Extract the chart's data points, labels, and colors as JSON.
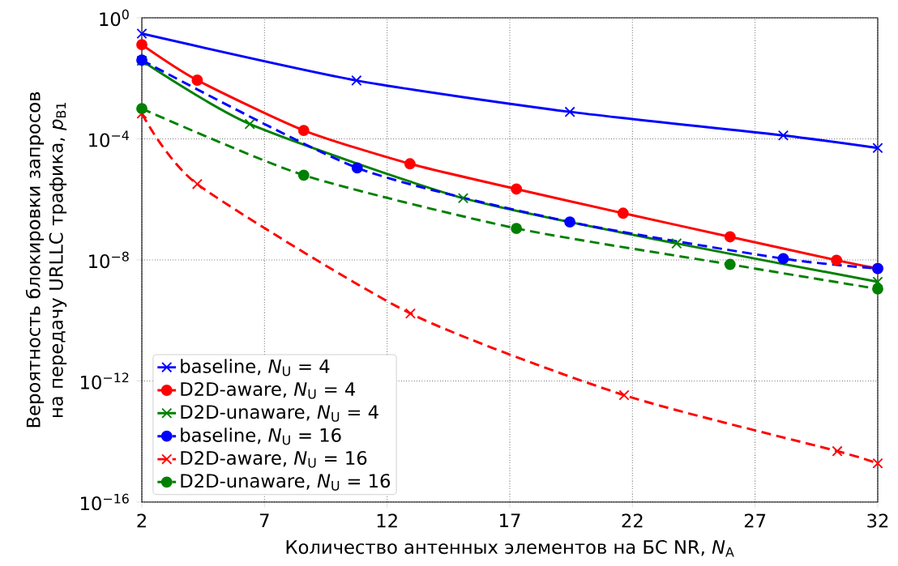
{
  "chart_data": {
    "type": "line",
    "xlabel": "Количество антенных элементов на БС NR, *N*$_{A}$",
    "ylabel": "Вероятность блокировки запросов на передачу URLLC трафика, *p*$_{B1}$",
    "log": "y",
    "grid": true,
    "legend": "bottom left",
    "xlim": [
      2,
      32
    ],
    "xticks": [
      2,
      7,
      12,
      17,
      22,
      27,
      32
    ],
    "ylim": [
      1e-16,
      1
    ],
    "yticks": [
      {
        "value": 1e-16,
        "label": "10$^{−16}$"
      },
      {
        "value": 1e-12,
        "label": "10$^{−12}$"
      },
      {
        "value": 1e-08,
        "label": "10$^{−8}$"
      },
      {
        "value": 0.0001,
        "label": "10$^{−4}$"
      },
      {
        "value": 1,
        "label": "10$^{0}$"
      }
    ],
    "series": [
      {
        "name": "baseline, *N*$_{U}$ = 4",
        "color": "#0000ff",
        "marker": "cross",
        "line_style": "solid",
        "x": [
          2,
          10.75,
          19.45,
          28.15,
          32
        ],
        "values": [
          0.3,
          0.0085,
          0.00078,
          0.00013,
          5e-05
        ]
      },
      {
        "name": "D2D-aware, *N*$_{U}$ = 4",
        "color": "#ff0000",
        "marker": "circle",
        "line_style": "solid",
        "x": [
          2,
          4.26,
          8.6,
          12.93,
          17.27,
          21.62,
          25.98,
          30.32,
          32
        ],
        "values": [
          0.13,
          0.0087,
          0.00019,
          1.5e-05,
          2.2e-06,
          3.5e-07,
          5.8e-08,
          9.8e-09,
          5.2e-09
        ]
      },
      {
        "name": "D2D-unaware, *N*$_{U}$ = 4",
        "color": "#008000",
        "marker": "cross",
        "line_style": "solid",
        "x": [
          2,
          6.4,
          15.1,
          23.8,
          32
        ],
        "values": [
          0.038,
          0.00031,
          1.1e-06,
          3.5e-08,
          1.9e-09
        ]
      },
      {
        "name": "baseline, *N*$_{U}$ = 16",
        "color": "#0000ff",
        "marker": "circle",
        "line_style": "dashed",
        "x": [
          2,
          10.78,
          19.45,
          28.15,
          32
        ],
        "values": [
          0.04,
          1.1e-05,
          1.8e-07,
          1.1e-08,
          5.2e-09
        ]
      },
      {
        "name": "D2D-aware, *N*$_{U}$ = 16",
        "color": "#ff0000",
        "marker": "cross",
        "line_style": "dashed",
        "x": [
          2,
          4.26,
          12.95,
          21.66,
          30.35,
          32
        ],
        "values": [
          0.00069,
          3.2e-06,
          1.7e-10,
          3.4e-13,
          4.8e-15,
          1.9e-15
        ]
      },
      {
        "name": "D2D-unaware, *N*$_{U}$ = 16",
        "color": "#008000",
        "marker": "circle",
        "line_style": "dashed",
        "x": [
          2,
          8.6,
          17.27,
          25.98,
          32
        ],
        "values": [
          0.001,
          6.3e-06,
          1.1e-07,
          7.1e-09,
          1.1e-09
        ]
      }
    ]
  }
}
